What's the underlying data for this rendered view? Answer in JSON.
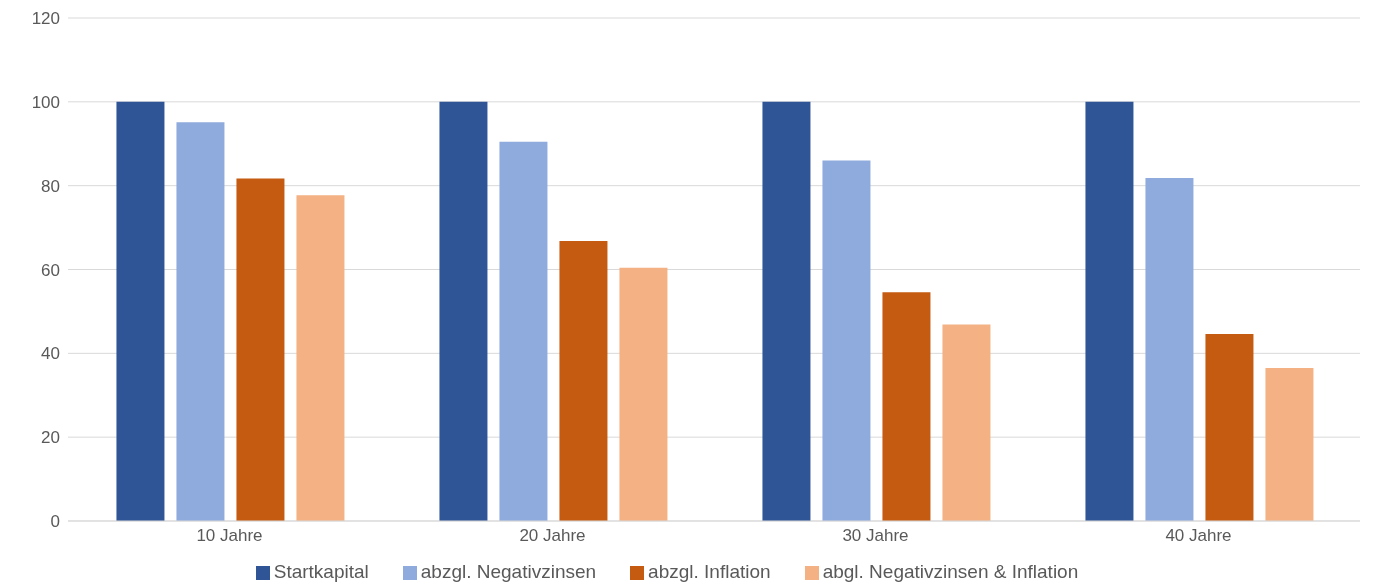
{
  "chart_data": {
    "type": "bar",
    "categories": [
      "10 Jahre",
      "20 Jahre",
      "30 Jahre",
      "40 Jahre"
    ],
    "series": [
      {
        "name": "Startkapital",
        "color": "#2f5597",
        "values": [
          100,
          100,
          100,
          100
        ]
      },
      {
        "name": "abzgl. Negativzinsen",
        "color": "#8faadc",
        "values": [
          95.1,
          90.5,
          86,
          81.8
        ]
      },
      {
        "name": "abzgl. Inflation",
        "color": "#c55a11",
        "values": [
          81.7,
          66.8,
          54.6,
          44.6
        ]
      },
      {
        "name": "abgl. Negativzinsen & Inflation",
        "color": "#f4b183",
        "values": [
          77.7,
          60.4,
          46.9,
          36.5
        ]
      }
    ],
    "ylim": [
      0,
      120
    ],
    "yticks": [
      0,
      20,
      40,
      60,
      80,
      100,
      120
    ],
    "grid": "y",
    "legend": "bottom"
  }
}
